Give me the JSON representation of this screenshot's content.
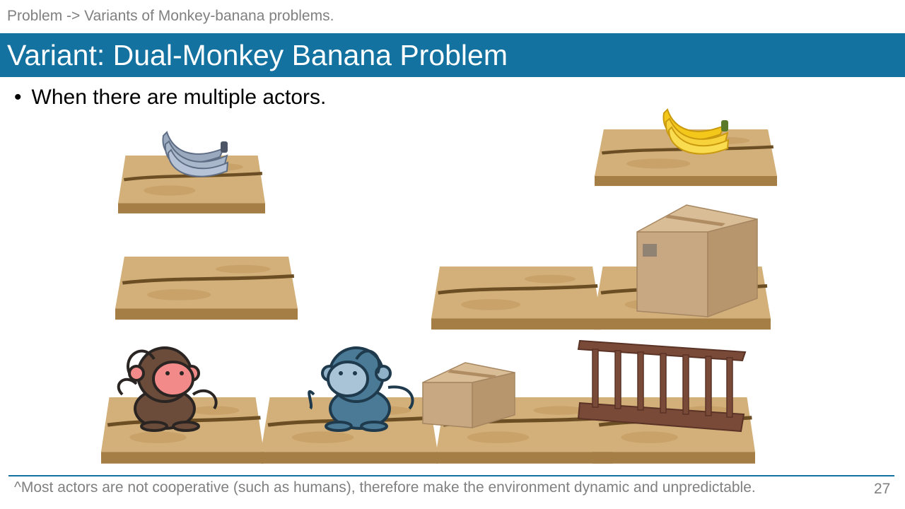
{
  "breadcrumb": "Problem -> Variants of Monkey-banana problems.",
  "title": "Variant: Dual-Monkey Banana Problem",
  "bullet": "When there are multiple actors.",
  "footnote": "^Most actors are not cooperative (such as humans), therefore make the environment dynamic and unpredictable.",
  "page_number": "27",
  "colors": {
    "accent": "#1372a0",
    "wood": "#c9a66b",
    "wood_dark": "#8a6a38",
    "monkey_brown": "#6b4b3a",
    "monkey_blue": "#4a7a95",
    "banana_yellow": "#f4c81a",
    "banana_gray": "#9aa9be",
    "box": "#c8a882",
    "ladder": "#7a4a38"
  },
  "icons": [
    "gray-banana-bunch-icon",
    "yellow-banana-bunch-icon",
    "brown-monkey-icon",
    "blue-monkey-icon",
    "cardboard-box-icon",
    "ladder-icon"
  ]
}
